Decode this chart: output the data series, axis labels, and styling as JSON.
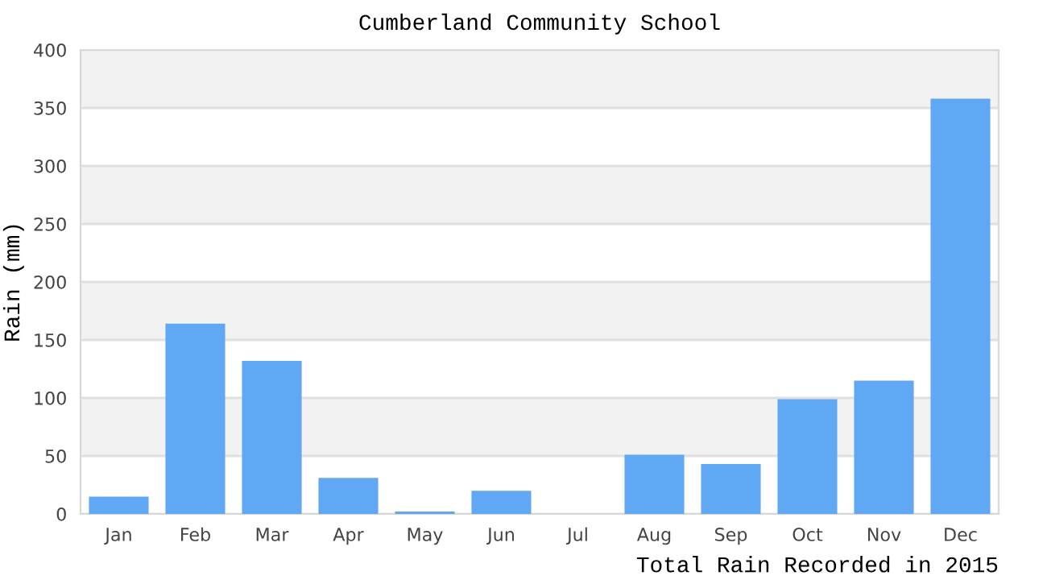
{
  "chart_data": {
    "type": "bar",
    "title": "Cumberland Community School",
    "ylabel": "Rain (mm)",
    "categories": [
      "Jan",
      "Feb",
      "Mar",
      "Apr",
      "May",
      "Jun",
      "Jul",
      "Aug",
      "Sep",
      "Oct",
      "Nov",
      "Dec"
    ],
    "values": [
      15,
      164,
      132,
      31,
      2,
      20,
      0,
      51,
      43,
      99,
      115,
      358
    ],
    "color": "#60a8f4",
    "ylim": [
      0,
      400
    ],
    "yticks": [
      0,
      50,
      100,
      150,
      200,
      250,
      300,
      350,
      400
    ],
    "grid": "y",
    "annotations": [
      "Total Rain Recorded in 2015"
    ]
  }
}
